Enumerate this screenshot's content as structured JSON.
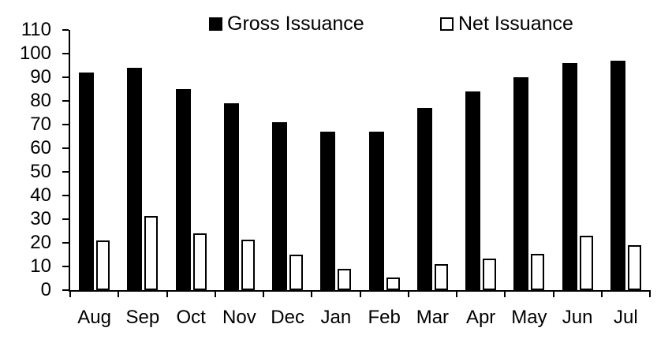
{
  "chart_data": {
    "type": "bar",
    "categories": [
      "Aug",
      "Sep",
      "Oct",
      "Nov",
      "Dec",
      "Jan",
      "Feb",
      "Mar",
      "Apr",
      "May",
      "Jun",
      "Jul"
    ],
    "series": [
      {
        "name": "Gross Issuance",
        "fill": "#000000",
        "values": [
          92,
          94,
          85,
          79,
          71,
          67,
          67,
          77,
          84,
          90,
          96,
          97
        ]
      },
      {
        "name": "Net Issuance",
        "fill": "#ffffff",
        "stroke": "#000000",
        "values": [
          21,
          31.5,
          24,
          21.5,
          15,
          9,
          5.5,
          11,
          13.5,
          15.5,
          23,
          19
        ]
      }
    ],
    "title": "",
    "xlabel": "",
    "ylabel": "",
    "ylim": [
      0,
      110
    ],
    "yticks": [
      0,
      10,
      20,
      30,
      40,
      50,
      60,
      70,
      80,
      90,
      100,
      110
    ],
    "grid": false,
    "legend_position": "top"
  },
  "colors": {
    "gross": "#000000",
    "net_fill": "#ffffff",
    "net_border": "#000000",
    "axis": "#000000",
    "text": "#000000",
    "background": "#ffffff"
  }
}
